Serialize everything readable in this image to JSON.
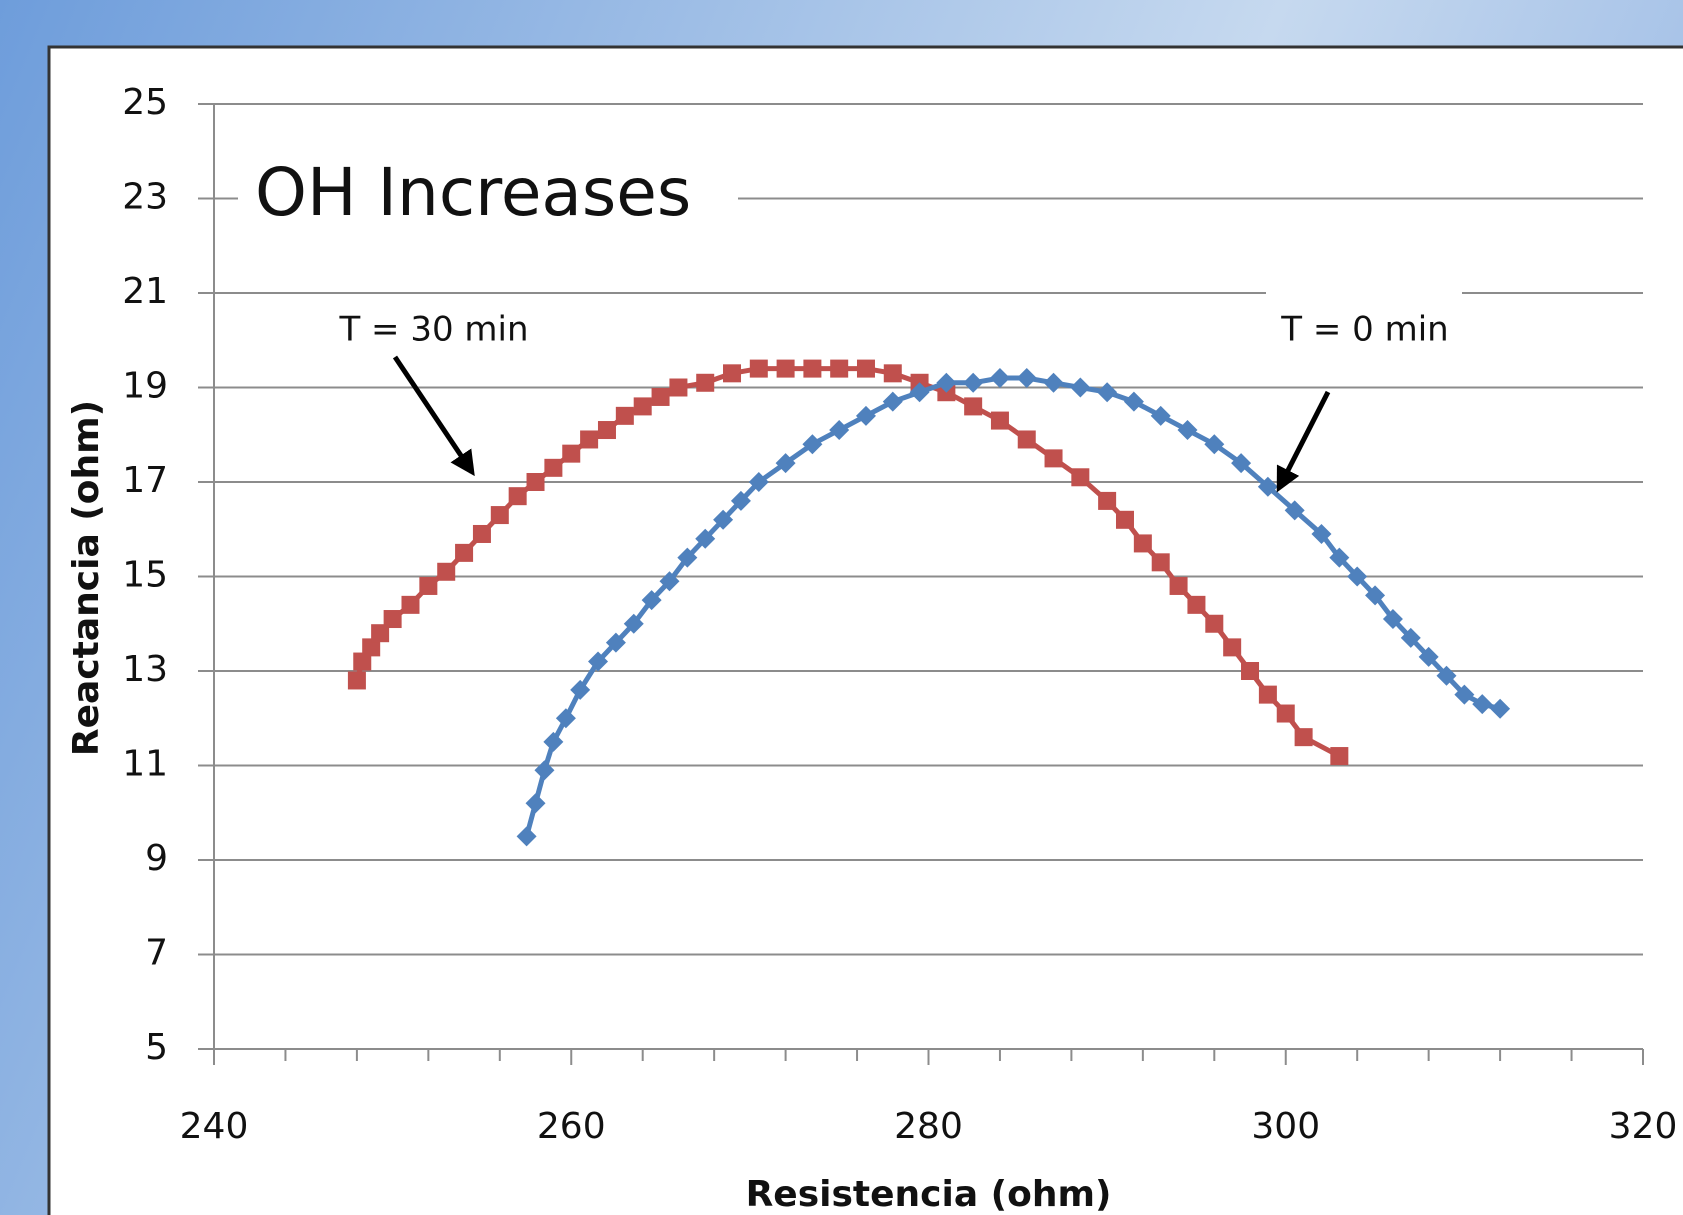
{
  "chart_data": {
    "type": "scatter",
    "title": "OH Increases",
    "x_label": "Resistencia (ohm)",
    "y_label": "Reactancia (ohm)",
    "xlim": [
      240,
      320
    ],
    "xticks": [
      240,
      260,
      280,
      300,
      320
    ],
    "xminorticks": [
      244,
      248,
      252,
      256,
      264,
      268,
      272,
      276,
      284,
      288,
      292,
      296,
      304,
      308,
      312,
      316
    ],
    "ylim": [
      5,
      25
    ],
    "yticks": [
      5,
      7,
      9,
      11,
      13,
      15,
      17,
      19,
      21,
      23,
      25
    ],
    "grid": true,
    "series": [
      {
        "name": "T = 30 min",
        "color": "#c0504d",
        "marker": "square",
        "x": [
          248,
          248.3,
          248.8,
          249.3,
          250,
          251,
          252,
          253,
          254,
          255,
          256,
          257,
          258,
          259,
          260,
          261,
          262,
          263,
          264,
          265,
          266,
          267.5,
          269,
          270.5,
          272,
          273.5,
          275,
          276.5,
          278,
          279.5,
          281,
          282.5,
          284,
          285.5,
          287,
          288.5,
          290,
          291,
          292,
          293,
          294,
          295,
          296,
          297,
          298,
          299,
          300,
          301,
          303
        ],
        "values": [
          12.8,
          13.2,
          13.5,
          13.8,
          14.1,
          14.4,
          14.8,
          15.1,
          15.5,
          15.9,
          16.3,
          16.7,
          17.0,
          17.3,
          17.6,
          17.9,
          18.1,
          18.4,
          18.6,
          18.8,
          19.0,
          19.1,
          19.3,
          19.4,
          19.4,
          19.4,
          19.4,
          19.4,
          19.3,
          19.1,
          18.9,
          18.6,
          18.3,
          17.9,
          17.5,
          17.1,
          16.6,
          16.2,
          15.7,
          15.3,
          14.8,
          14.4,
          14.0,
          13.5,
          13.0,
          12.5,
          12.1,
          11.6,
          11.2
        ]
      },
      {
        "name": "T = 0 min",
        "color": "#4f81bd",
        "marker": "diamond",
        "x": [
          257.5,
          258,
          258.5,
          259,
          259.7,
          260.5,
          261.5,
          262.5,
          263.5,
          264.5,
          265.5,
          266.5,
          267.5,
          268.5,
          269.5,
          270.5,
          272,
          273.5,
          275,
          276.5,
          278,
          279.5,
          281,
          282.5,
          284,
          285.5,
          287,
          288.5,
          290,
          291.5,
          293,
          294.5,
          296,
          297.5,
          299,
          300.5,
          302,
          303,
          304,
          305,
          306,
          307,
          308,
          309,
          310,
          311,
          312
        ],
        "values": [
          9.5,
          10.2,
          10.9,
          11.5,
          12.0,
          12.6,
          13.2,
          13.6,
          14.0,
          14.5,
          14.9,
          15.4,
          15.8,
          16.2,
          16.6,
          17.0,
          17.4,
          17.8,
          18.1,
          18.4,
          18.7,
          18.9,
          19.1,
          19.1,
          19.2,
          19.2,
          19.1,
          19.0,
          18.9,
          18.7,
          18.4,
          18.1,
          17.8,
          17.4,
          16.9,
          16.4,
          15.9,
          15.4,
          15.0,
          14.6,
          14.1,
          13.7,
          13.3,
          12.9,
          12.5,
          12.3,
          12.2
        ]
      }
    ]
  }
}
